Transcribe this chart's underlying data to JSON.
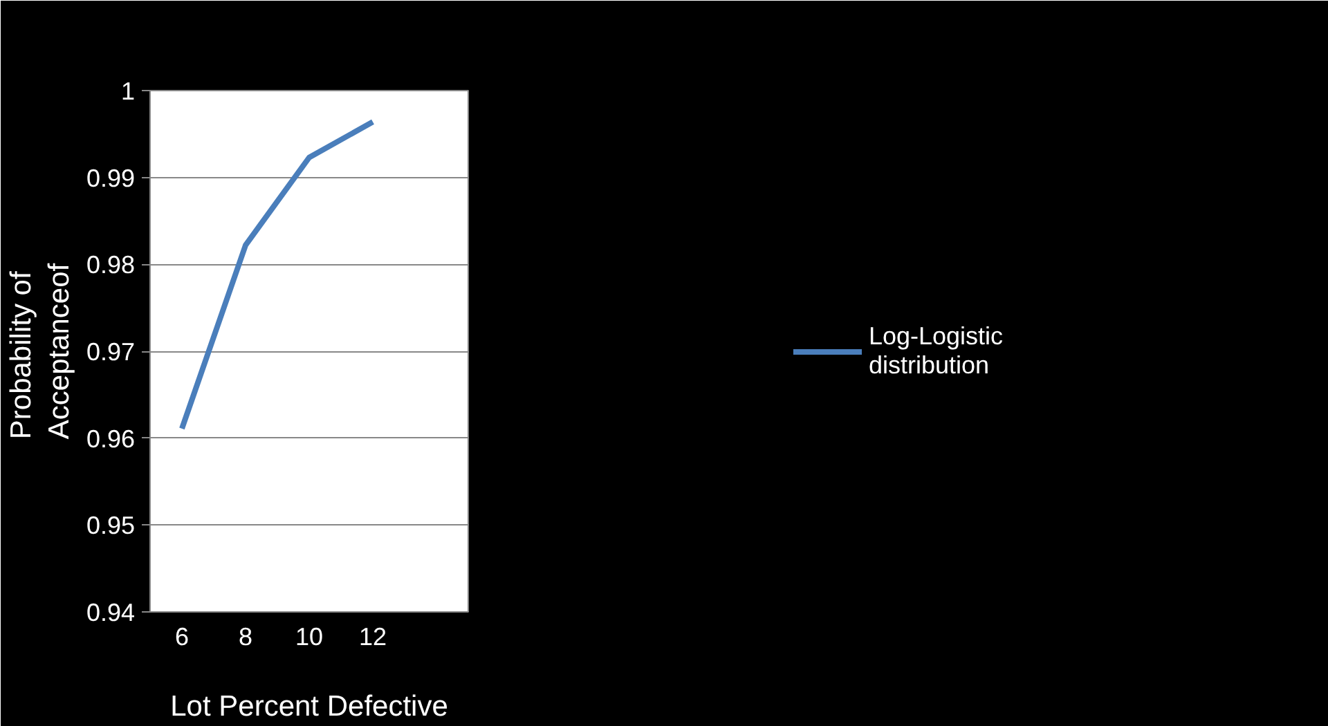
{
  "chart_data": {
    "type": "line",
    "xlabel": "Lot Percent Defective",
    "ylabel": "Probability  of\nAcceptanceof",
    "categories": [
      "6",
      "8",
      "10",
      "12",
      null
    ],
    "series": [
      {
        "name": "Log-Logistic\ndistribution",
        "color": "#4a7ebb",
        "values": [
          0.9611,
          0.9822,
          0.9923,
          0.9964,
          null
        ]
      }
    ],
    "ylim": [
      0.94,
      1
    ],
    "yticks": [
      0.94,
      0.95,
      0.96,
      0.97,
      0.98,
      0.99,
      1
    ],
    "grid": "y",
    "legend": "right",
    "marker": "none",
    "line_style": "solid"
  }
}
